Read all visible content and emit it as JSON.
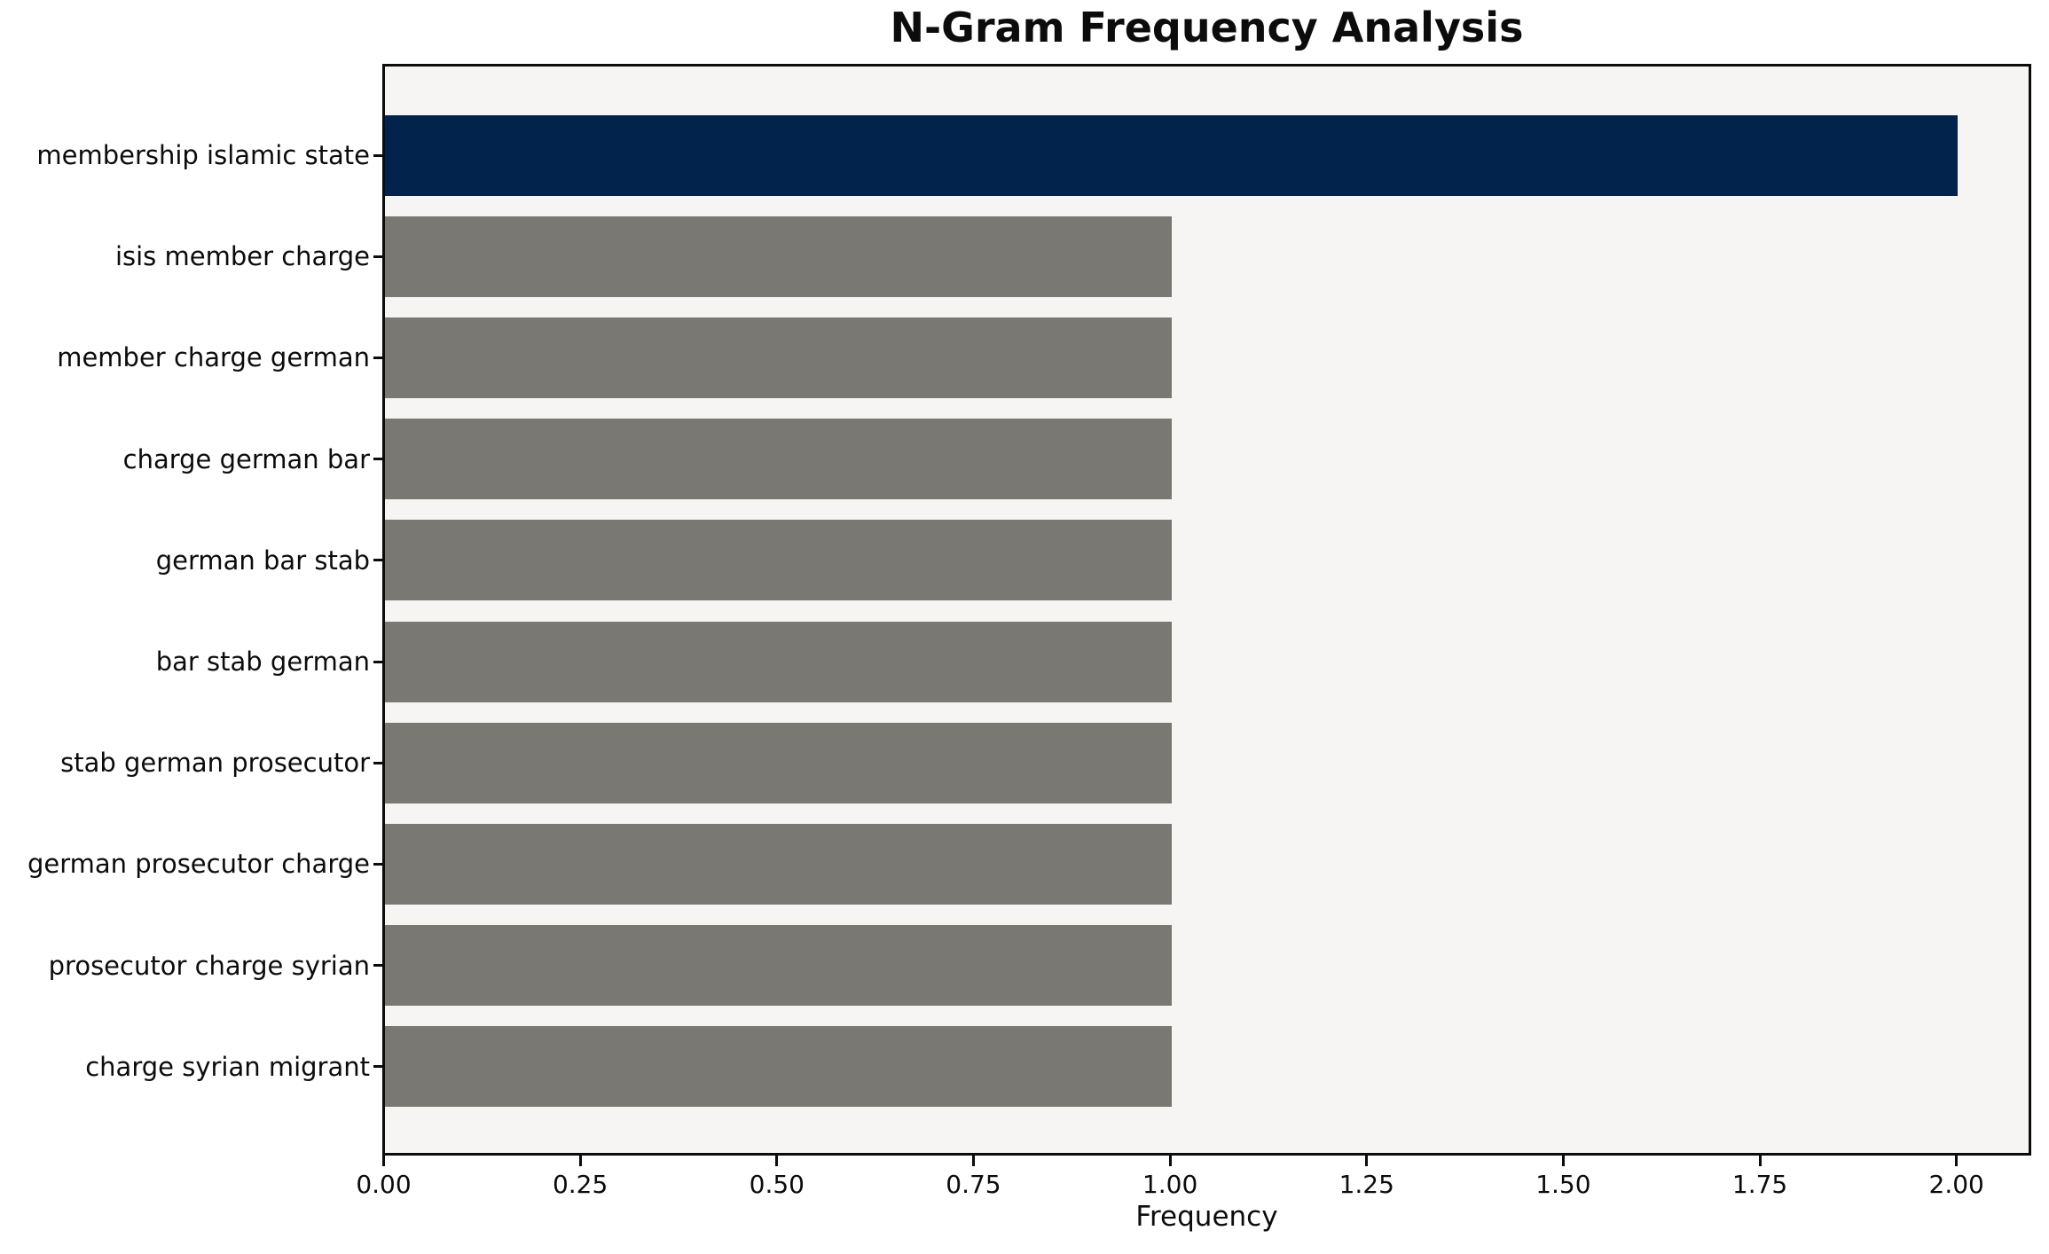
{
  "chart_data": {
    "type": "bar",
    "orientation": "horizontal",
    "title": "N-Gram Frequency Analysis",
    "xlabel": "Frequency",
    "ylabel": "",
    "categories": [
      "membership islamic state",
      "isis member charge",
      "member charge german",
      "charge german bar",
      "german bar stab",
      "bar stab german",
      "stab german prosecutor",
      "german prosecutor charge",
      "prosecutor charge syrian",
      "charge syrian migrant"
    ],
    "values": [
      2,
      1,
      1,
      1,
      1,
      1,
      1,
      1,
      1,
      1
    ],
    "xlim": [
      0,
      2.09
    ],
    "xticks": [
      0,
      0.25,
      0.5,
      0.75,
      1.0,
      1.25,
      1.5,
      1.75,
      2.0
    ],
    "xtick_labels": [
      "0.00",
      "0.25",
      "0.50",
      "0.75",
      "1.00",
      "1.25",
      "1.50",
      "1.75",
      "2.00"
    ],
    "grid": false,
    "legend_position": "none",
    "bar_colors_by_index": [
      "#02234c",
      "#7a7872",
      "#7a7872",
      "#7a7872",
      "#7a7872",
      "#7a7872",
      "#7a7872",
      "#7a7872",
      "#7a7872",
      "#7a7872"
    ],
    "colors": {
      "bar_highlight": "#02234c",
      "bar_default": "#7a7872",
      "plot_background": "#f7f5f4",
      "figure_background": "#ffffff",
      "spine": "#0c0c0c",
      "text": "#0c0c0c"
    }
  }
}
